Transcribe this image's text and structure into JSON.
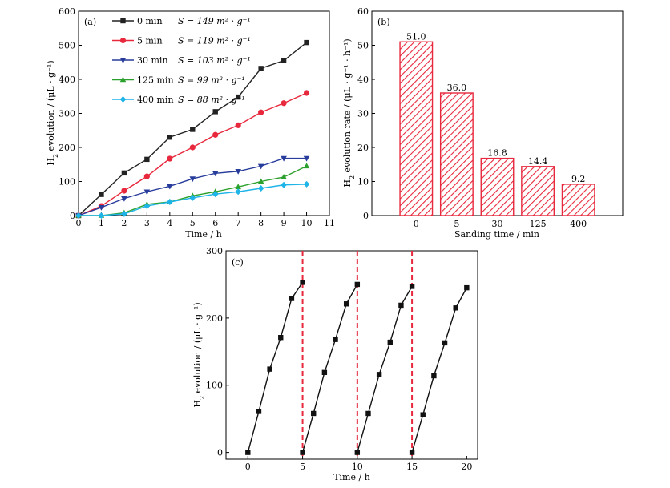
{
  "chart_data": [
    {
      "type": "line",
      "panel_label": "(a)",
      "xlabel": "Time / h",
      "ylabel_main": "H",
      "ylabel_sub": "2",
      "ylabel_rest": " evolution / (μL · g⁻¹)",
      "xlim": [
        0,
        11
      ],
      "ylim": [
        0,
        600
      ],
      "xticks": [
        0,
        1,
        2,
        3,
        4,
        5,
        6,
        7,
        8,
        9,
        10,
        11
      ],
      "yticks": [
        0,
        100,
        200,
        300,
        400,
        500,
        600
      ],
      "x": [
        0,
        1,
        2,
        3,
        4,
        5,
        6,
        7,
        8,
        9,
        10
      ],
      "legend_position": "top-left",
      "series": [
        {
          "name": "0 min",
          "s_label": "S = 149 m² · g⁻¹",
          "color": "#222222",
          "marker": "square",
          "values": [
            0,
            62,
            125,
            165,
            230,
            253,
            305,
            348,
            432,
            455,
            508
          ]
        },
        {
          "name": "5 min",
          "s_label": "S = 119 m² · g⁻¹",
          "color": "#e8283c",
          "marker": "circle",
          "values": [
            0,
            28,
            73,
            115,
            167,
            200,
            237,
            265,
            303,
            330,
            360
          ]
        },
        {
          "name": "30 min",
          "s_label": "S = 103 m² · g⁻¹",
          "color": "#283c9c",
          "marker": "triangle-down",
          "values": [
            0,
            24,
            50,
            70,
            86,
            108,
            124,
            130,
            145,
            168,
            168
          ]
        },
        {
          "name": "125 min",
          "s_label": "S = 99 m² · g⁻¹",
          "color": "#2ca02c",
          "marker": "triangle-up",
          "values": [
            0,
            0,
            8,
            33,
            40,
            58,
            70,
            84,
            100,
            113,
            145
          ]
        },
        {
          "name": "400 min",
          "s_label": "S = 88 m² · g⁻¹",
          "color": "#1fb4e8",
          "marker": "diamond",
          "values": [
            0,
            0,
            5,
            28,
            40,
            52,
            63,
            70,
            80,
            90,
            92
          ]
        }
      ]
    },
    {
      "type": "bar",
      "panel_label": "(b)",
      "xlabel": "Sanding time / min",
      "ylabel_main": "H",
      "ylabel_sub": "2",
      "ylabel_rest": " evolution rate / (μL · g⁻¹ · h⁻¹)",
      "categories": [
        "0",
        "5",
        "30",
        "125",
        "400"
      ],
      "values": [
        51.0,
        36.0,
        16.8,
        14.4,
        9.2
      ],
      "value_labels": [
        "51.0",
        "36.0",
        "16.8",
        "14.4",
        "9.2"
      ],
      "ylim": [
        0,
        60
      ],
      "yticks": [
        0,
        10,
        20,
        30,
        40,
        50,
        60
      ],
      "bar_color": "#e8283c",
      "fill": "hatched"
    },
    {
      "type": "line",
      "panel_label": "(c)",
      "xlabel": "Time / h",
      "ylabel_main": "H",
      "ylabel_sub": "2",
      "ylabel_rest": " evolution / (μL · g⁻¹)",
      "xlim": [
        -2,
        21
      ],
      "ylim": [
        -10,
        300
      ],
      "xticks": [
        0,
        5,
        10,
        15,
        20
      ],
      "yticks": [
        0,
        100,
        200,
        300
      ],
      "cycle_lines": [
        5,
        10,
        15
      ],
      "cycle_line_color": "#e8283c",
      "series_color": "#111111",
      "cycles": [
        {
          "x": [
            0,
            1,
            2,
            3,
            4,
            5
          ],
          "values": [
            0,
            61,
            124,
            171,
            229,
            253
          ]
        },
        {
          "x": [
            5,
            6,
            7,
            8,
            9,
            10
          ],
          "values": [
            0,
            58,
            119,
            168,
            221,
            250
          ]
        },
        {
          "x": [
            10,
            11,
            12,
            13,
            14,
            15
          ],
          "values": [
            0,
            58,
            116,
            164,
            219,
            247
          ]
        },
        {
          "x": [
            15,
            16,
            17,
            18,
            19,
            20
          ],
          "values": [
            0,
            56,
            114,
            163,
            215,
            245
          ]
        }
      ]
    }
  ]
}
